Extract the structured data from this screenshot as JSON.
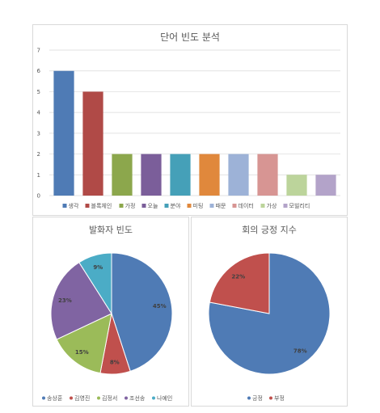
{
  "chart_data": [
    {
      "type": "bar",
      "title": "단어 빈도 분석",
      "categories": [
        "생각",
        "블록체인",
        "가정",
        "오늘",
        "분야",
        "미팅",
        "때문",
        "데이터",
        "가상",
        "모빌리티"
      ],
      "values": [
        6,
        5,
        2,
        2,
        2,
        2,
        2,
        2,
        1,
        1
      ],
      "colors": [
        "#4f7bb5",
        "#b04a47",
        "#8ca74c",
        "#7b5e9a",
        "#45a0b8",
        "#e0883c",
        "#9db2d7",
        "#d79593",
        "#bcd49b",
        "#b3a3c9"
      ],
      "ylim": [
        0,
        7
      ],
      "yticks": [
        "0",
        "1",
        "2",
        "3",
        "4",
        "5",
        "6",
        "7"
      ],
      "grid": true,
      "legend_position": "bottom"
    },
    {
      "type": "pie",
      "title": "발화자 빈도",
      "categories": [
        "송상훈",
        "김영진",
        "김정서",
        "조선송",
        "나예인"
      ],
      "values": [
        45,
        8,
        15,
        23,
        9
      ],
      "labels": [
        "45%",
        "8%",
        "15%",
        "23%",
        "9%"
      ],
      "colors": [
        "#4f7bb5",
        "#c0504d",
        "#9bbb59",
        "#8064a2",
        "#4bacc6"
      ],
      "legend_position": "bottom"
    },
    {
      "type": "pie",
      "title": "회의 긍정 지수",
      "categories": [
        "긍정",
        "부정"
      ],
      "values": [
        78,
        22
      ],
      "labels": [
        "78%",
        "22%"
      ],
      "colors": [
        "#4f7bb5",
        "#c0504d"
      ],
      "legend_position": "bottom"
    }
  ]
}
